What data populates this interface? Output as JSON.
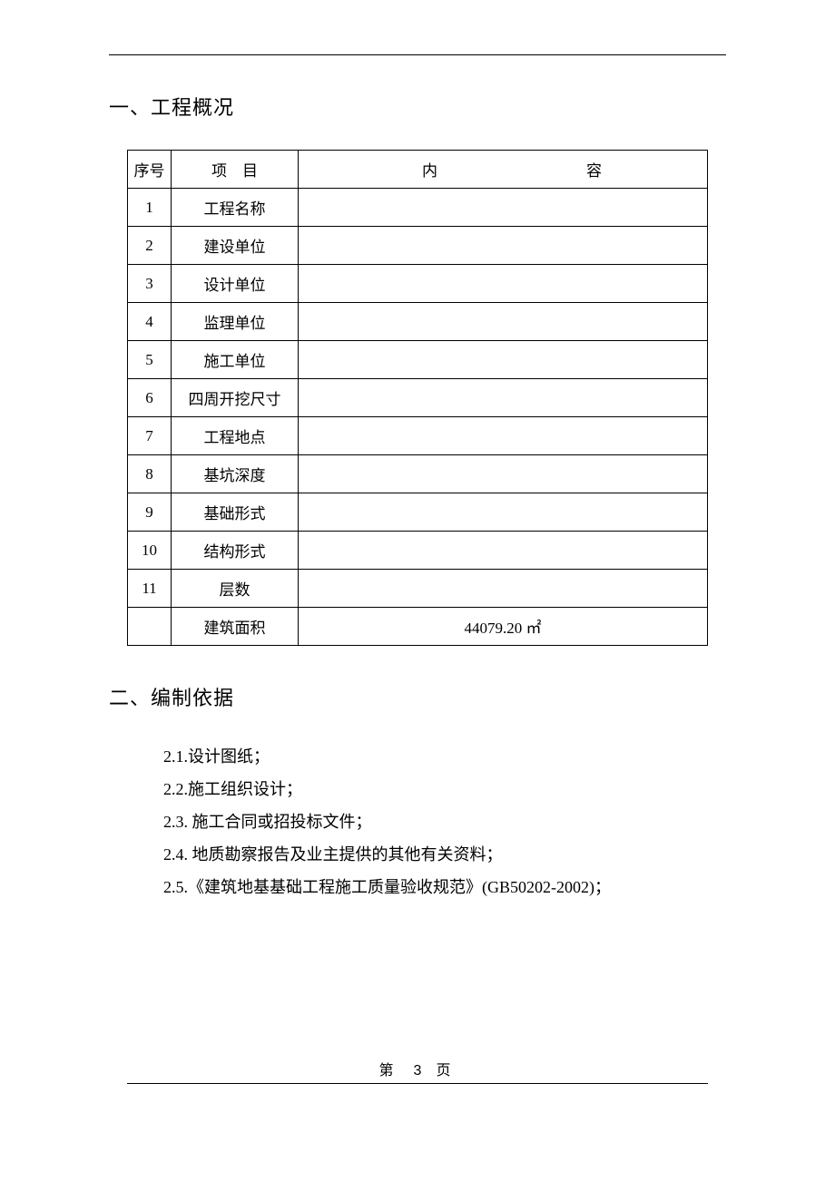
{
  "section1": {
    "heading": "一、工程概况",
    "table": {
      "columns": {
        "seq": "序号",
        "item": "项　目",
        "content_left": "内",
        "content_right": "容"
      },
      "rows": [
        {
          "seq": "1",
          "item": "工程名称",
          "content": ""
        },
        {
          "seq": "2",
          "item": "建设单位",
          "content": ""
        },
        {
          "seq": "3",
          "item": "设计单位",
          "content": ""
        },
        {
          "seq": "4",
          "item": "监理单位",
          "content": ""
        },
        {
          "seq": "5",
          "item": "施工单位",
          "content": ""
        },
        {
          "seq": "6",
          "item": "四周开挖尺寸",
          "content": ""
        },
        {
          "seq": "7",
          "item": "工程地点",
          "content": ""
        },
        {
          "seq": "8",
          "item": "基坑深度",
          "content": ""
        },
        {
          "seq": "9",
          "item": "基础形式",
          "content": ""
        },
        {
          "seq": "10",
          "item": "结构形式",
          "content": ""
        },
        {
          "seq": "11",
          "item": "层数",
          "content": ""
        },
        {
          "seq": "",
          "item": "建筑面积",
          "content": "44079.20 ㎡"
        }
      ]
    }
  },
  "section2": {
    "heading": "二、编制依据",
    "items": [
      "2.1.设计图纸；",
      "2.2.施工组织设计；",
      "2.3. 施工合同或招投标文件；",
      "2.4. 地质勘察报告及业主提供的其他有关资料；",
      "2.5.《建筑地基基础工程施工质量验收规范》(GB50202-2002)；"
    ]
  },
  "footer": {
    "prefix": "第",
    "pageNumber": "3",
    "suffix": "页"
  },
  "colors": {
    "text": "#000000",
    "background": "#ffffff",
    "border": "#000000"
  }
}
